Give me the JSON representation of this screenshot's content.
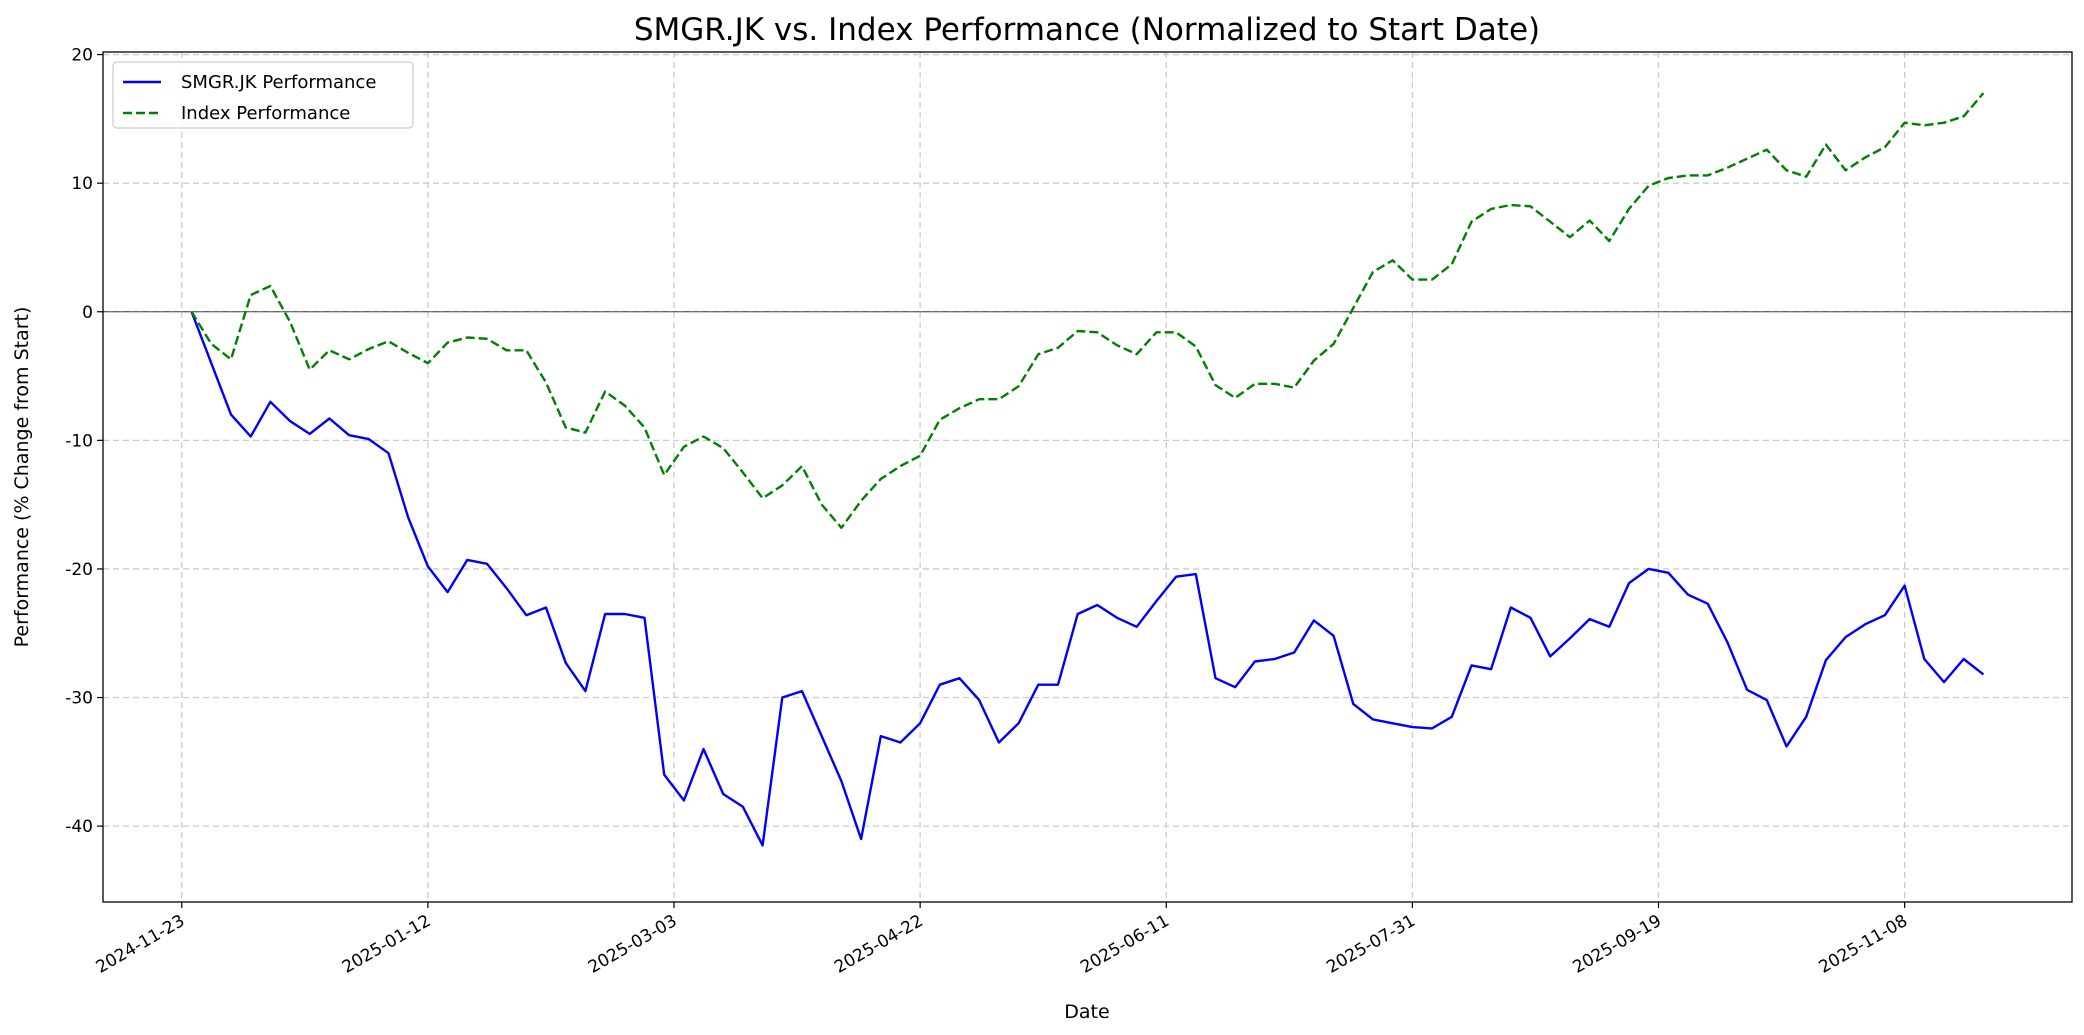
{
  "chart_data": {
    "type": "line",
    "title": "SMGR.JK vs. Index Performance (Normalized to Start Date)",
    "xlabel": "Date",
    "ylabel": "Performance (% Change from Start)",
    "x": [
      "2024-11-25",
      "2024-11-29",
      "2024-12-03",
      "2024-12-07",
      "2024-12-11",
      "2024-12-15",
      "2024-12-19",
      "2024-12-23",
      "2024-12-27",
      "2024-12-31",
      "2025-01-04",
      "2025-01-08",
      "2025-01-12",
      "2025-01-16",
      "2025-01-20",
      "2025-01-24",
      "2025-01-28",
      "2025-02-01",
      "2025-02-05",
      "2025-02-09",
      "2025-02-13",
      "2025-02-17",
      "2025-02-21",
      "2025-02-25",
      "2025-03-01",
      "2025-03-05",
      "2025-03-09",
      "2025-03-13",
      "2025-03-17",
      "2025-03-21",
      "2025-03-25",
      "2025-03-29",
      "2025-04-02",
      "2025-04-06",
      "2025-04-10",
      "2025-04-14",
      "2025-04-18",
      "2025-04-22",
      "2025-04-26",
      "2025-04-30",
      "2025-05-04",
      "2025-05-08",
      "2025-05-12",
      "2025-05-16",
      "2025-05-20",
      "2025-05-24",
      "2025-05-28",
      "2025-06-01",
      "2025-06-05",
      "2025-06-09",
      "2025-06-13",
      "2025-06-17",
      "2025-06-21",
      "2025-06-25",
      "2025-06-29",
      "2025-07-03",
      "2025-07-07",
      "2025-07-11",
      "2025-07-15",
      "2025-07-19",
      "2025-07-23",
      "2025-07-27",
      "2025-07-31",
      "2025-08-04",
      "2025-08-08",
      "2025-08-12",
      "2025-08-16",
      "2025-08-20",
      "2025-08-24",
      "2025-08-28",
      "2025-09-01",
      "2025-09-05",
      "2025-09-09",
      "2025-09-13",
      "2025-09-17",
      "2025-09-21",
      "2025-09-25",
      "2025-09-29",
      "2025-10-03",
      "2025-10-07",
      "2025-10-11",
      "2025-10-15",
      "2025-10-19",
      "2025-10-23",
      "2025-10-27",
      "2025-10-31",
      "2025-11-04",
      "2025-11-08",
      "2025-11-12",
      "2025-11-16",
      "2025-11-20",
      "2025-11-24"
    ],
    "series": [
      {
        "name": "SMGR.JK Performance",
        "color": "#0000ff",
        "dashed": false,
        "values": [
          0,
          -4,
          -8,
          -9.7,
          -7,
          -8.5,
          -9.5,
          -8.3,
          -9.6,
          -9.9,
          -11,
          -16,
          -19.8,
          -21.8,
          -19.3,
          -19.6,
          -21.5,
          -23.6,
          -23,
          -27.3,
          -29.5,
          -23.5,
          -23.5,
          -23.8,
          -36,
          -38,
          -34,
          -37.5,
          -38.5,
          -41.5,
          -30,
          -29.5,
          -33,
          -36.5,
          -41,
          -33,
          -33.5,
          -32,
          -29,
          -28.5,
          -30.2,
          -33.5,
          -32,
          -29,
          -29,
          -23.5,
          -22.8,
          -23.8,
          -24.5,
          -22.5,
          -20.6,
          -20.4,
          -28.5,
          -29.2,
          -27.2,
          -27,
          -26.5,
          -24,
          -25.2,
          -30.5,
          -31.7,
          -32,
          -32.3,
          -32.4,
          -31.5,
          -27.5,
          -27.8,
          -23,
          -23.8,
          -26.8,
          -25.4,
          -23.9,
          -24.5,
          -21.1,
          -20,
          -20.3,
          -22,
          -22.7,
          -25.7,
          -29.4,
          -30.2,
          -33.8,
          -31.5,
          -27.1,
          -25.3,
          -24.3,
          -23.6,
          -21.3,
          -27,
          -28.8,
          -27,
          -28.2
        ]
      },
      {
        "name": "Index Performance",
        "color": "#008000",
        "dashed": true,
        "values": [
          0,
          -2.5,
          -3.7,
          1.3,
          2,
          -0.8,
          -4.5,
          -3,
          -3.7,
          -2.9,
          -2.3,
          -3.2,
          -4,
          -2.4,
          -2,
          -2.1,
          -3,
          -3,
          -5.5,
          -9,
          -9.4,
          -6.2,
          -7.3,
          -9,
          -12.7,
          -10.5,
          -9.7,
          -10.6,
          -12.5,
          -14.5,
          -13.5,
          -12,
          -15,
          -16.8,
          -14.7,
          -13,
          -12,
          -11.2,
          -8.4,
          -7.5,
          -6.8,
          -6.8,
          -5.8,
          -3.3,
          -2.8,
          -1.5,
          -1.6,
          -2.6,
          -3.3,
          -1.6,
          -1.6,
          -2.7,
          -5.7,
          -6.7,
          -5.6,
          -5.6,
          -5.9,
          -3.8,
          -2.5,
          0.3,
          3.1,
          4,
          2.5,
          2.5,
          3.7,
          7,
          8,
          8.3,
          8.2,
          7,
          5.8,
          7.1,
          5.5,
          8,
          9.8,
          10.4,
          10.6,
          10.6,
          11.2,
          11.9,
          12.6,
          11,
          10.5,
          13,
          11,
          12,
          12.8,
          14.7,
          14.5,
          14.7,
          15.2,
          17
        ]
      }
    ],
    "xlim": [
      "2024-11-07",
      "2025-12-12"
    ],
    "xticks": [
      "2024-11-23",
      "2025-01-12",
      "2025-03-03",
      "2025-04-22",
      "2025-06-11",
      "2025-07-31",
      "2025-09-19",
      "2025-11-08"
    ],
    "ylim": [
      -45.9,
      20.2
    ],
    "yticks": [
      -40,
      -30,
      -20,
      -10,
      0,
      10,
      20
    ],
    "reference_line": 0,
    "grid": true,
    "legend": "upper left"
  }
}
